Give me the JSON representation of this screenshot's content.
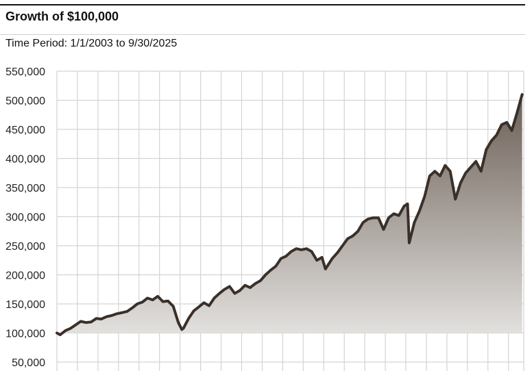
{
  "header": {
    "title": "Growth of $100,000",
    "subtitle": "Time Period: 1/1/2003 to 9/30/2025"
  },
  "colors": {
    "line": "#3a3029",
    "grid": "#d3d3d3",
    "area_top": "#6b5f56",
    "area_bottom": "#e3e1df"
  },
  "chart_data": {
    "type": "area",
    "title": "Growth of $100,000",
    "subtitle": "Time Period: 1/1/2003 to 9/30/2025",
    "xlabel": "",
    "ylabel": "",
    "x_range": [
      "2003-01-01",
      "2025-09-30"
    ],
    "ylim": [
      50000,
      550000
    ],
    "baseline": 100000,
    "yticks": [
      50000,
      100000,
      150000,
      200000,
      250000,
      300000,
      350000,
      400000,
      450000,
      500000,
      550000
    ],
    "ytick_labels": [
      "50,000",
      "100,000",
      "150,000",
      "200,000",
      "250,000",
      "300,000",
      "350,000",
      "400,000",
      "450,000",
      "500,000",
      "550,000"
    ],
    "grid": true,
    "legend": "none",
    "series": [
      {
        "x": [
          "2003-01",
          "2003-03",
          "2003-06",
          "2003-09",
          "2003-12",
          "2004-03",
          "2004-06",
          "2004-09",
          "2004-12",
          "2005-03",
          "2005-06",
          "2005-09",
          "2005-12",
          "2006-03",
          "2006-06",
          "2006-09",
          "2006-12",
          "2007-03",
          "2007-06",
          "2007-09",
          "2007-12",
          "2008-03",
          "2008-06",
          "2008-09",
          "2008-12",
          "2009-02",
          "2009-03",
          "2009-06",
          "2009-09",
          "2009-12",
          "2010-03",
          "2010-06",
          "2010-09",
          "2010-12",
          "2011-03",
          "2011-06",
          "2011-09",
          "2011-12",
          "2012-03",
          "2012-06",
          "2012-09",
          "2012-12",
          "2013-03",
          "2013-06",
          "2013-09",
          "2013-12",
          "2014-03",
          "2014-06",
          "2014-09",
          "2014-12",
          "2015-03",
          "2015-06",
          "2015-09",
          "2015-12",
          "2016-02",
          "2016-06",
          "2016-09",
          "2016-12",
          "2017-03",
          "2017-06",
          "2017-09",
          "2017-12",
          "2018-03",
          "2018-06",
          "2018-09",
          "2018-12",
          "2019-03",
          "2019-06",
          "2019-09",
          "2019-12",
          "2020-02",
          "2020-03",
          "2020-06",
          "2020-09",
          "2020-12",
          "2021-03",
          "2021-06",
          "2021-09",
          "2021-12",
          "2022-03",
          "2022-06",
          "2022-09",
          "2022-12",
          "2023-03",
          "2023-06",
          "2023-09",
          "2023-12",
          "2024-03",
          "2024-06",
          "2024-09",
          "2024-12",
          "2025-03",
          "2025-06",
          "2025-09"
        ],
        "y": [
          100000,
          97000,
          104000,
          108000,
          114000,
          120000,
          118000,
          119000,
          125000,
          124000,
          128000,
          130000,
          133000,
          135000,
          137000,
          143000,
          150000,
          153000,
          160000,
          157000,
          163000,
          154000,
          155000,
          146000,
          118000,
          106000,
          108000,
          125000,
          138000,
          145000,
          152000,
          147000,
          160000,
          168000,
          175000,
          180000,
          168000,
          173000,
          182000,
          178000,
          185000,
          190000,
          200000,
          208000,
          215000,
          228000,
          232000,
          240000,
          245000,
          243000,
          245000,
          240000,
          225000,
          230000,
          210000,
          228000,
          238000,
          250000,
          262000,
          267000,
          275000,
          290000,
          296000,
          298000,
          298000,
          278000,
          298000,
          305000,
          302000,
          318000,
          322000,
          255000,
          290000,
          310000,
          335000,
          370000,
          378000,
          370000,
          388000,
          378000,
          330000,
          358000,
          375000,
          385000,
          395000,
          378000,
          415000,
          430000,
          440000,
          458000,
          462000,
          448000,
          478000,
          510000
        ]
      }
    ]
  }
}
